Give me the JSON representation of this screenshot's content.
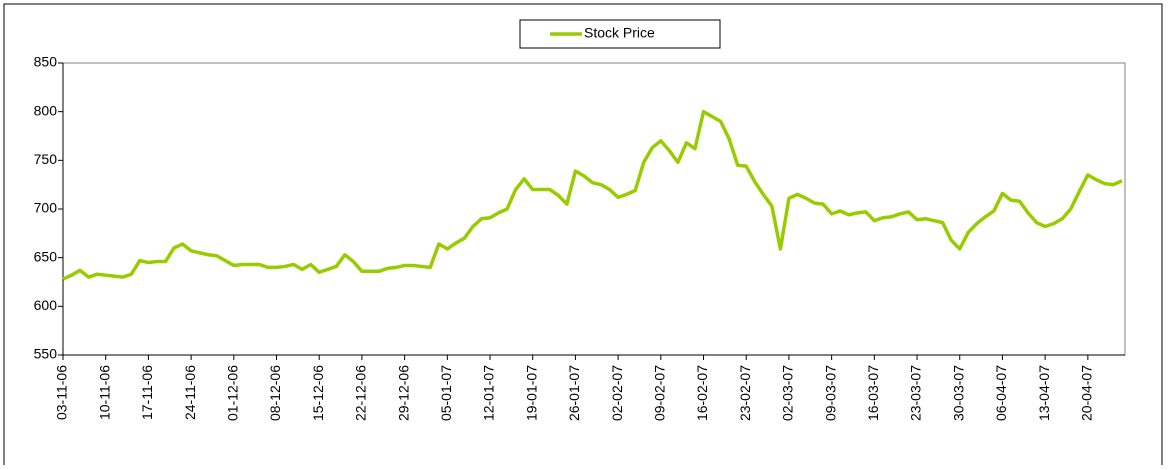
{
  "chart_data": {
    "type": "line",
    "categories": [
      "03-11-06",
      null,
      null,
      null,
      null,
      "10-11-06",
      null,
      null,
      null,
      null,
      "17-11-06",
      null,
      null,
      null,
      null,
      "24-11-06",
      null,
      null,
      null,
      null,
      "01-12-06",
      null,
      null,
      null,
      null,
      "08-12-06",
      null,
      null,
      null,
      null,
      "15-12-06",
      null,
      null,
      null,
      null,
      "22-12-06",
      null,
      null,
      null,
      null,
      "29-12-06",
      null,
      null,
      null,
      null,
      "05-01-07",
      null,
      null,
      null,
      null,
      "12-01-07",
      null,
      null,
      null,
      null,
      "19-01-07",
      null,
      null,
      null,
      null,
      "26-01-07",
      null,
      null,
      null,
      null,
      "02-02-07",
      null,
      null,
      null,
      null,
      "09-02-07",
      null,
      null,
      null,
      null,
      "16-02-07",
      null,
      null,
      null,
      null,
      "23-02-07",
      null,
      null,
      null,
      null,
      "02-03-07",
      null,
      null,
      null,
      null,
      "09-03-07",
      null,
      null,
      null,
      null,
      "16-03-07",
      null,
      null,
      null,
      null,
      "23-03-07",
      null,
      null,
      null,
      null,
      "30-03-07",
      null,
      null,
      null,
      null,
      "06-04-07",
      null,
      null,
      null,
      null,
      "13-04-07",
      null,
      null,
      null,
      null,
      "20-04-07",
      null,
      null,
      null,
      null
    ],
    "series": [
      {
        "name": "Stock Price",
        "color": "#99cc00",
        "values": [
          628,
          632,
          637,
          630,
          633,
          632,
          631,
          630,
          633,
          647,
          645,
          646,
          646,
          660,
          664,
          657,
          655,
          653,
          652,
          647,
          642,
          643,
          643,
          643,
          640,
          640,
          641,
          643,
          638,
          643,
          635,
          638,
          641,
          653,
          646,
          636,
          636,
          636,
          639,
          640,
          642,
          642,
          641,
          640,
          664,
          659,
          665,
          670,
          682,
          690,
          691,
          696,
          700,
          720,
          731,
          720,
          720,
          720,
          714,
          705,
          739,
          734,
          727,
          725,
          720,
          712,
          715,
          719,
          748,
          763,
          770,
          760,
          748,
          768,
          762,
          800,
          795,
          790,
          772,
          745,
          744,
          728,
          715,
          703,
          659,
          711,
          715,
          711,
          706,
          705,
          695,
          698,
          694,
          696,
          697,
          688,
          691,
          692,
          695,
          697,
          689,
          690,
          688,
          686,
          668,
          659,
          676,
          685,
          692,
          698,
          716,
          709,
          708,
          696,
          686,
          682,
          685,
          690,
          700,
          718,
          735,
          730,
          726,
          725,
          729
        ]
      }
    ],
    "ylim": [
      550,
      850
    ],
    "yticks": [
      550,
      600,
      650,
      700,
      750,
      800,
      850
    ],
    "legend": "top"
  }
}
